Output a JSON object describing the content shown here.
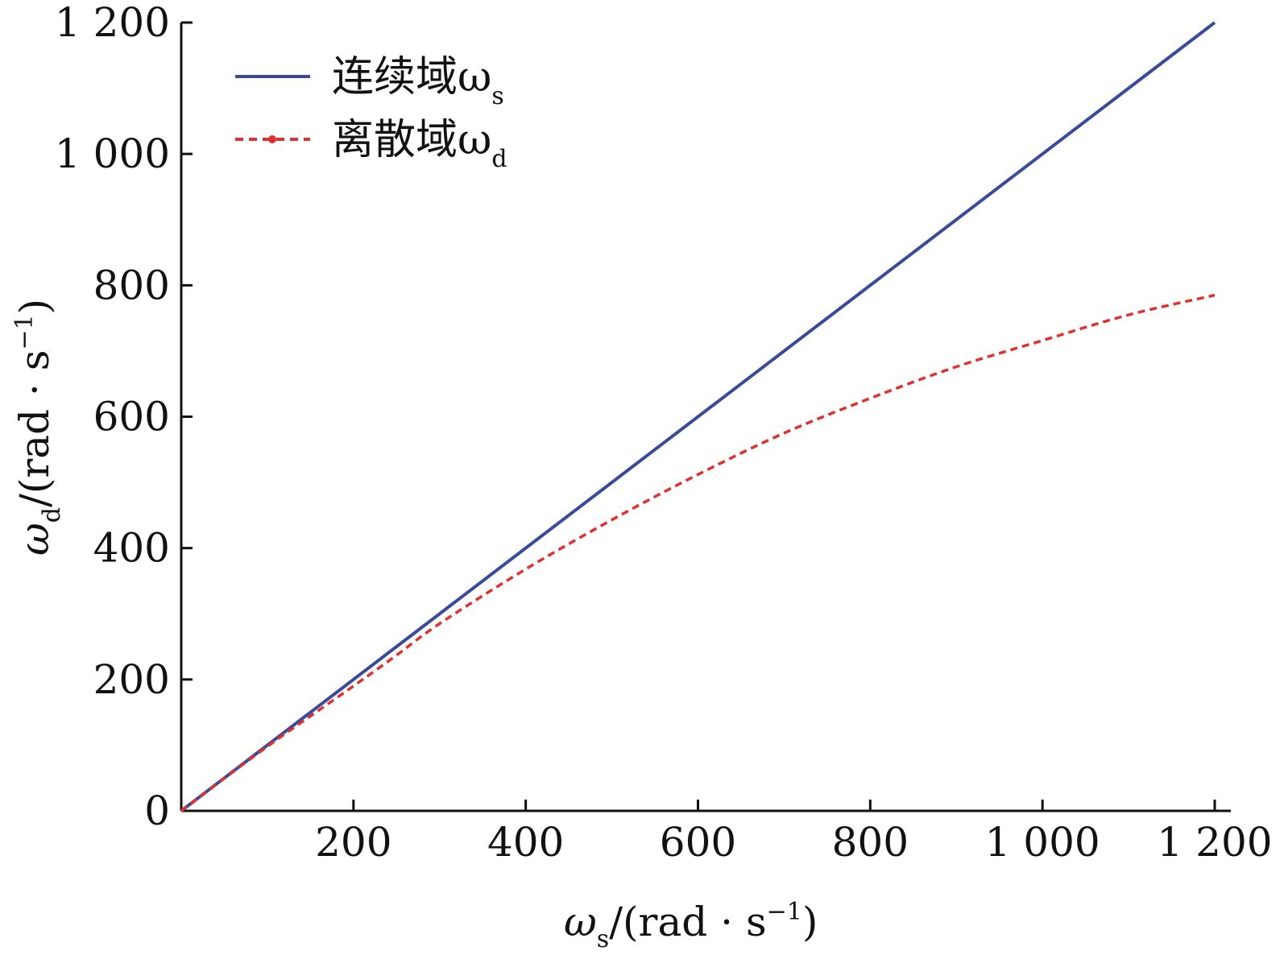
{
  "chart_data": {
    "type": "line",
    "xlabel": {
      "symbol": "ω",
      "sub": "s",
      "unit_prefix": "/(rad · s",
      "exp": "−1",
      "close": ")"
    },
    "ylabel": {
      "symbol": "ω",
      "sub": "d",
      "unit_prefix": "/(rad · s",
      "exp": "−1",
      "close": ")"
    },
    "xlim": [
      0,
      1200
    ],
    "ylim": [
      0,
      1200
    ],
    "x_ticks": [
      200,
      400,
      600,
      800,
      1000,
      1200
    ],
    "x_tick_labels": [
      "200",
      "400",
      "600",
      "800",
      "1 000",
      "1 200"
    ],
    "y_ticks": [
      0,
      200,
      400,
      600,
      800,
      1000,
      1200
    ],
    "y_tick_labels": [
      "0",
      "200",
      "400",
      "600",
      "800",
      "1 000",
      "1 200"
    ],
    "grid": false,
    "legend_position": "top-left",
    "series": [
      {
        "name": "连续域ω",
        "name_sub": "s",
        "style": "solid",
        "color": "#3a4a9a",
        "x": [
          0,
          1200
        ],
        "y": [
          0,
          1200
        ]
      },
      {
        "name": "离散域ω",
        "name_sub": "d",
        "style": "dashed",
        "color": "#e03030",
        "x": [
          0,
          100,
          200,
          250,
          300,
          400,
          500,
          600,
          700,
          800,
          900,
          1000,
          1100,
          1200
        ],
        "y": [
          0,
          98,
          190,
          237,
          285,
          368,
          443,
          512,
          575,
          628,
          676,
          716,
          755,
          785
        ]
      }
    ]
  }
}
